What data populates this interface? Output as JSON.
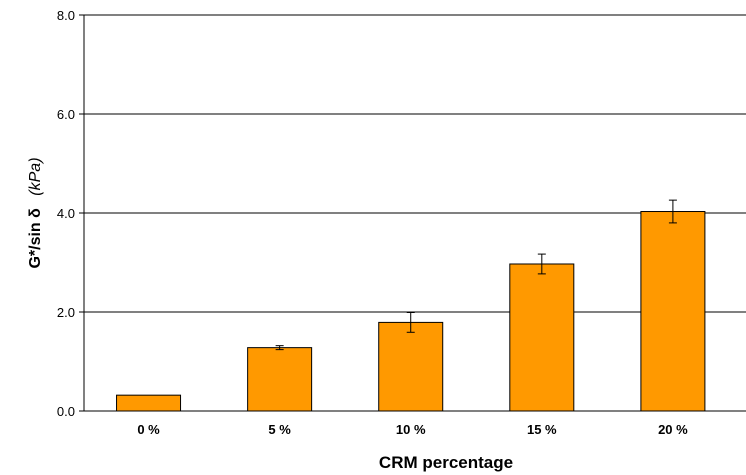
{
  "chart_data": {
    "type": "bar",
    "categories": [
      "0 %",
      "5 %",
      "10 %",
      "15 %",
      "20 %"
    ],
    "values": [
      0.32,
      1.28,
      1.79,
      2.97,
      4.03
    ],
    "errors": [
      0.0,
      0.04,
      0.2,
      0.2,
      0.23
    ],
    "ylim": [
      0,
      8
    ],
    "yticks": [
      "0.0",
      "2.0",
      "4.0",
      "6.0",
      "8.0"
    ],
    "xlabel": "CRM  percentage",
    "ylabel_main": "G*/sin δ",
    "ylabel_unit": "(kPa)",
    "grid": true,
    "bar_color": "#FF9900",
    "bar_edge_color": "#000000"
  }
}
